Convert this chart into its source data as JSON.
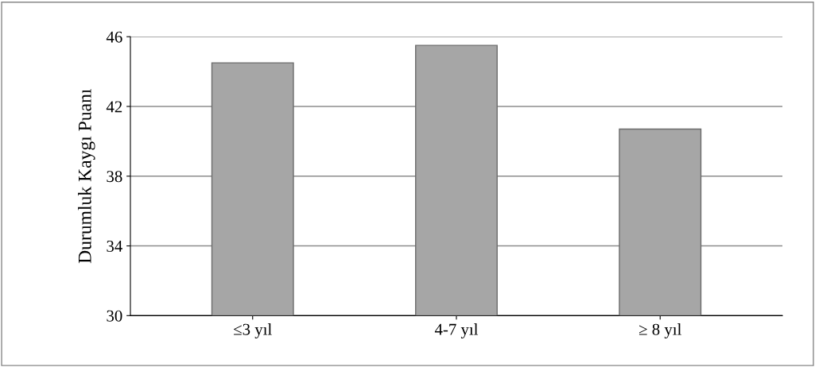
{
  "chart_data": {
    "type": "bar",
    "ylabel": "Durumluk Kaygı Puanı",
    "categories": [
      "≤3 yıl",
      "4-7 yıl",
      "≥ 8 yıl"
    ],
    "values": [
      44.5,
      45.5,
      40.7
    ],
    "color": "#a6a6a6",
    "ylim": [
      30,
      46
    ],
    "yticks": [
      30,
      34,
      38,
      42,
      46
    ],
    "grid": "y"
  }
}
